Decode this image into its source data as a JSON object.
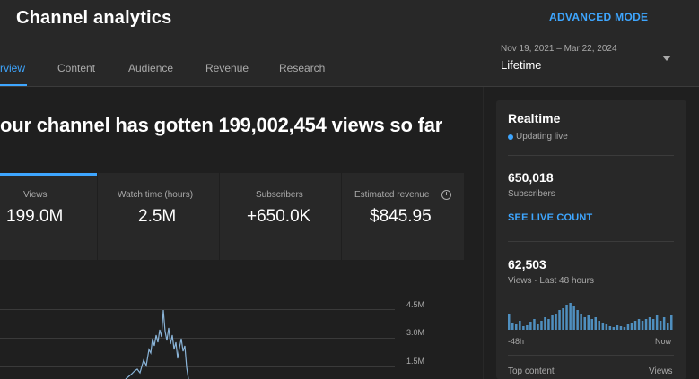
{
  "header": {
    "title": "Channel analytics",
    "advanced_mode": "ADVANCED MODE",
    "date_range": "Nov 19, 2021 – Mar 22, 2024",
    "period": "Lifetime"
  },
  "tabs": [
    {
      "label": "rview",
      "active": true
    },
    {
      "label": "Content",
      "active": false
    },
    {
      "label": "Audience",
      "active": false
    },
    {
      "label": "Revenue",
      "active": false
    },
    {
      "label": "Research",
      "active": false
    }
  ],
  "headline": "our channel has gotten 199,002,454 views so far",
  "metrics": [
    {
      "label": "Views",
      "value": "199.0M"
    },
    {
      "label": "Watch time (hours)",
      "value": "2.5M"
    },
    {
      "label": "Subscribers",
      "value": "+650.0K"
    },
    {
      "label": "Estimated revenue",
      "value": "$845.95"
    }
  ],
  "chart": {
    "y_ticks": [
      "4.5M",
      "3.0M",
      "1.5M"
    ],
    "accent_color": "#8ab4d8"
  },
  "realtime": {
    "title": "Realtime",
    "status": "Updating live",
    "subscribers_value": "650,018",
    "subscribers_label": "Subscribers",
    "live_count_link": "SEE LIVE COUNT",
    "views_value": "62,503",
    "views_label": "Views · Last 48 hours",
    "axis_start": "-48h",
    "axis_end": "Now",
    "top_content_label": "Top content",
    "views_col_label": "Views",
    "bar_color": "#4f8fbf"
  },
  "colors": {
    "accent": "#3ea6ff",
    "background": "#282828",
    "panel": "#1f1f1f"
  }
}
